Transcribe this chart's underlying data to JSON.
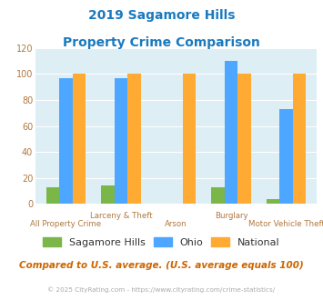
{
  "title_line1": "2019 Sagamore Hills",
  "title_line2": "Property Crime Comparison",
  "title_color": "#1a7abf",
  "categories": [
    "All Property Crime",
    "Larceny & Theft",
    "Arson",
    "Burglary",
    "Motor Vehicle Theft"
  ],
  "sagamore_hills": [
    13,
    14,
    0,
    13,
    4
  ],
  "ohio": [
    97,
    97,
    0,
    110,
    73
  ],
  "national": [
    100,
    100,
    100,
    100,
    100
  ],
  "sagamore_color": "#7ab648",
  "ohio_color": "#4da6ff",
  "national_color": "#ffaa33",
  "bg_color": "#ddeef5",
  "ylim": [
    0,
    120
  ],
  "yticks": [
    0,
    20,
    40,
    60,
    80,
    100,
    120
  ],
  "axis_tick_color": "#b07840",
  "xlabel_color": "#b07840",
  "legend_labels": [
    "Sagamore Hills",
    "Ohio",
    "National"
  ],
  "footnote": "Compared to U.S. average. (U.S. average equals 100)",
  "footnote_color": "#cc6600",
  "copyright": "© 2025 CityRating.com - https://www.cityrating.com/crime-statistics/",
  "copyright_color": "#aaaaaa",
  "grid_color": "#ffffff"
}
